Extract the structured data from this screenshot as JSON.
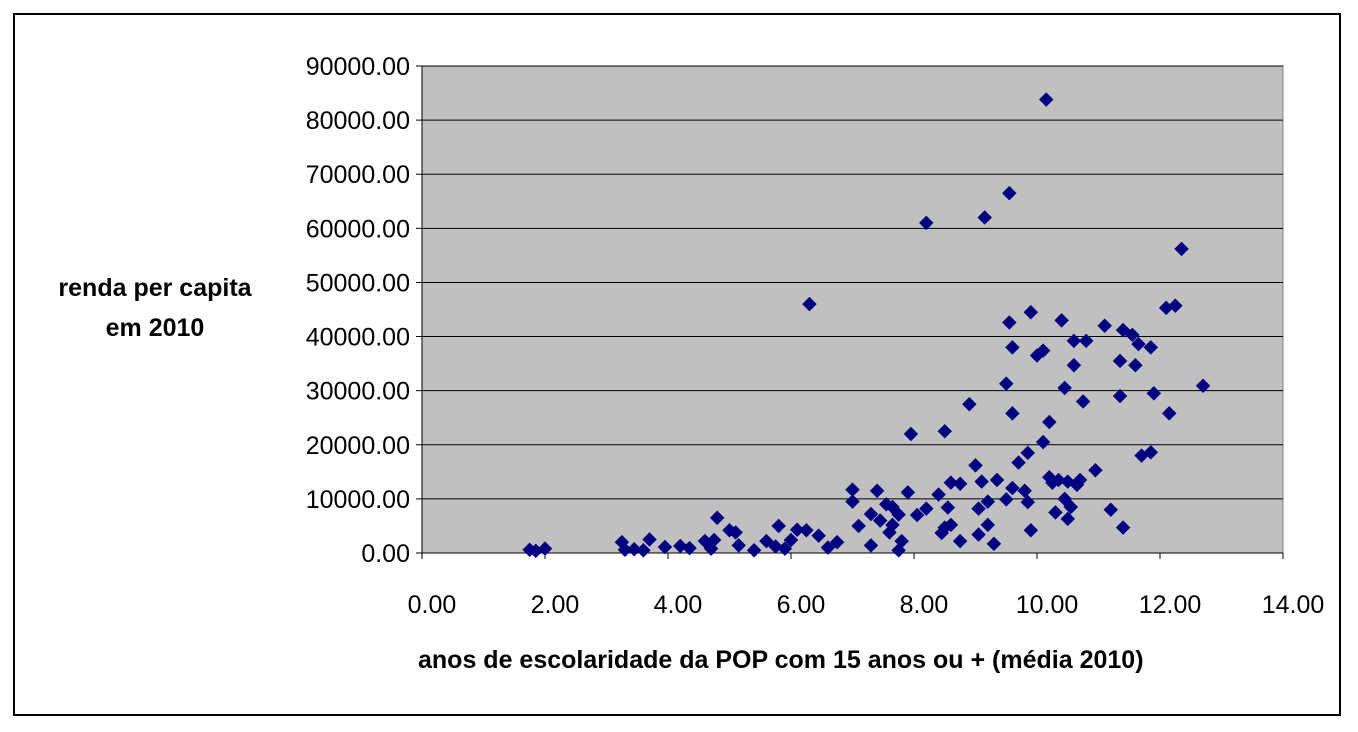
{
  "chart_data": {
    "type": "scatter",
    "title": "",
    "xlabel": "anos de escolaridade da POP com 15 anos ou + (média 2010)",
    "ylabel_lines": [
      "renda per capita",
      "em 2010"
    ],
    "xlim": [
      0,
      14
    ],
    "ylim": [
      0,
      90000
    ],
    "x_ticks": [
      "0.00",
      "2.00",
      "4.00",
      "6.00",
      "8.00",
      "10.00",
      "12.00",
      "14.00"
    ],
    "y_ticks": [
      "0.00",
      "10000.00",
      "20000.00",
      "30000.00",
      "40000.00",
      "50000.00",
      "60000.00",
      "70000.00",
      "80000.00",
      "90000.00"
    ],
    "grid": "horizontal",
    "legend": "none",
    "colors": {
      "plot_background": "#c0c0c0",
      "marker": "#000080",
      "gridline": "#000000"
    },
    "marker": "diamond",
    "points": [
      [
        1.75,
        600
      ],
      [
        1.85,
        400
      ],
      [
        2.0,
        800
      ],
      [
        3.25,
        2000
      ],
      [
        3.3,
        600
      ],
      [
        3.45,
        700
      ],
      [
        3.6,
        500
      ],
      [
        3.7,
        2500
      ],
      [
        3.95,
        1100
      ],
      [
        4.2,
        1300
      ],
      [
        4.35,
        900
      ],
      [
        4.6,
        2200
      ],
      [
        4.7,
        800
      ],
      [
        4.75,
        2400
      ],
      [
        4.8,
        6500
      ],
      [
        5.0,
        4200
      ],
      [
        5.1,
        3800
      ],
      [
        5.15,
        1400
      ],
      [
        5.4,
        500
      ],
      [
        5.6,
        2200
      ],
      [
        5.75,
        1200
      ],
      [
        5.8,
        5000
      ],
      [
        5.9,
        800
      ],
      [
        6.0,
        2400
      ],
      [
        6.1,
        4300
      ],
      [
        6.25,
        4200
      ],
      [
        6.3,
        46000
      ],
      [
        6.45,
        3200
      ],
      [
        6.6,
        1000
      ],
      [
        6.75,
        2000
      ],
      [
        7.0,
        11700
      ],
      [
        7.0,
        9500
      ],
      [
        7.1,
        5000
      ],
      [
        7.3,
        7200
      ],
      [
        7.3,
        1400
      ],
      [
        7.4,
        11500
      ],
      [
        7.45,
        6000
      ],
      [
        7.55,
        9000
      ],
      [
        7.6,
        3800
      ],
      [
        7.65,
        5200
      ],
      [
        7.65,
        8500
      ],
      [
        7.75,
        500
      ],
      [
        7.8,
        2200
      ],
      [
        7.75,
        7100
      ],
      [
        7.9,
        11200
      ],
      [
        7.95,
        22000
      ],
      [
        8.05,
        7000
      ],
      [
        8.2,
        8200
      ],
      [
        8.2,
        61000
      ],
      [
        8.4,
        10800
      ],
      [
        8.45,
        3700
      ],
      [
        8.5,
        22500
      ],
      [
        8.5,
        4700
      ],
      [
        8.55,
        8400
      ],
      [
        8.6,
        5200
      ],
      [
        8.6,
        13000
      ],
      [
        8.75,
        2200
      ],
      [
        8.75,
        12800
      ],
      [
        8.9,
        27500
      ],
      [
        9.0,
        16200
      ],
      [
        9.05,
        8200
      ],
      [
        9.05,
        3400
      ],
      [
        9.1,
        13200
      ],
      [
        9.15,
        62000
      ],
      [
        9.2,
        9500
      ],
      [
        9.2,
        5200
      ],
      [
        9.3,
        1700
      ],
      [
        9.35,
        13500
      ],
      [
        9.5,
        9900
      ],
      [
        9.5,
        31300
      ],
      [
        9.55,
        66500
      ],
      [
        9.55,
        42600
      ],
      [
        9.6,
        38000
      ],
      [
        9.6,
        25800
      ],
      [
        9.6,
        12000
      ],
      [
        9.7,
        16700
      ],
      [
        9.8,
        11500
      ],
      [
        9.85,
        18500
      ],
      [
        9.85,
        9400
      ],
      [
        9.9,
        44500
      ],
      [
        9.9,
        4200
      ],
      [
        10.0,
        36500
      ],
      [
        10.1,
        37400
      ],
      [
        10.1,
        20500
      ],
      [
        10.15,
        83800
      ],
      [
        10.2,
        24200
      ],
      [
        10.2,
        14000
      ],
      [
        10.25,
        13000
      ],
      [
        10.3,
        7500
      ],
      [
        10.35,
        13500
      ],
      [
        10.4,
        43000
      ],
      [
        10.45,
        30500
      ],
      [
        10.45,
        10000
      ],
      [
        10.5,
        13200
      ],
      [
        10.5,
        6300
      ],
      [
        10.55,
        8500
      ],
      [
        10.6,
        39200
      ],
      [
        10.6,
        34700
      ],
      [
        10.65,
        12600
      ],
      [
        10.7,
        13500
      ],
      [
        10.75,
        28000
      ],
      [
        10.8,
        39200
      ],
      [
        10.95,
        15300
      ],
      [
        11.1,
        42000
      ],
      [
        11.2,
        8000
      ],
      [
        11.35,
        35500
      ],
      [
        11.35,
        29000
      ],
      [
        11.4,
        4700
      ],
      [
        11.4,
        41200
      ],
      [
        11.55,
        40300
      ],
      [
        11.6,
        34700
      ],
      [
        11.65,
        38600
      ],
      [
        11.7,
        18000
      ],
      [
        11.85,
        38000
      ],
      [
        11.85,
        18600
      ],
      [
        11.9,
        29500
      ],
      [
        12.1,
        45300
      ],
      [
        12.15,
        25800
      ],
      [
        12.25,
        45700
      ],
      [
        12.35,
        56200
      ],
      [
        12.7,
        30900
      ]
    ]
  }
}
